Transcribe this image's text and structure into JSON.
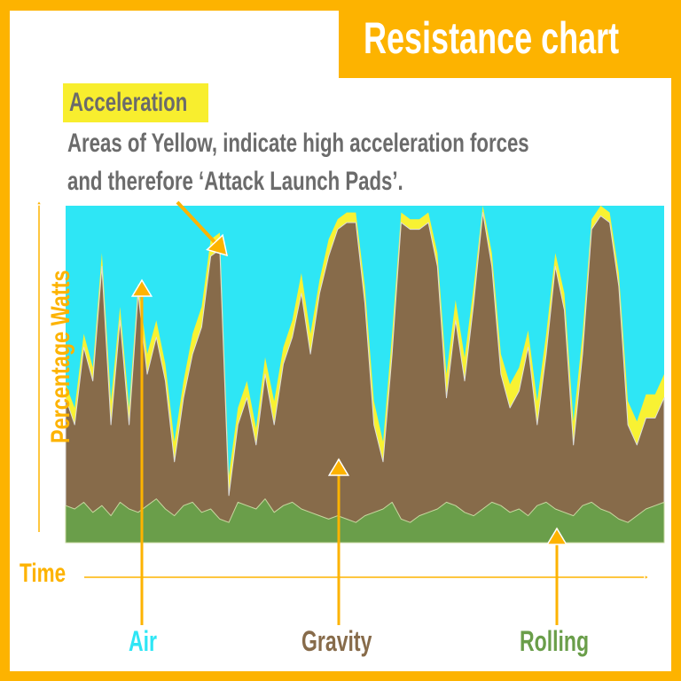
{
  "title": "Resistance chart",
  "acceleration_label": "Acceleration",
  "description": [
    "Areas of Yellow, indicate high acceleration forces",
    "and therefore ‘Attack Launch Pads’."
  ],
  "colors": {
    "frame": "#FDB300",
    "air": "#2EE6F5",
    "gravity": "#876B4A",
    "acceleration": "#F8F233",
    "rolling": "#6A9E4A",
    "text": "#6B6B6B"
  },
  "chart_data": {
    "type": "area",
    "title": "Resistance chart",
    "xlabel": "Time",
    "ylabel": "Percentage Watts",
    "ylim": [
      0,
      100
    ],
    "grid": false,
    "legend": [
      "Air",
      "Gravity",
      "Rolling"
    ],
    "legend_placement": "bottom",
    "annotation": "Acceleration",
    "series": [
      {
        "name": "Gravity",
        "values": [
          43,
          35,
          58,
          48,
          82,
          35,
          66,
          35,
          74,
          50,
          61,
          48,
          24,
          43,
          56,
          64,
          85,
          87,
          14,
          35,
          43,
          29,
          50,
          35,
          53,
          61,
          74,
          56,
          74,
          85,
          93,
          95,
          95,
          71,
          35,
          24,
          56,
          95,
          93,
          93,
          95,
          82,
          43,
          66,
          48,
          71,
          98,
          82,
          50,
          40,
          45,
          58,
          35,
          56,
          82,
          69,
          29,
          56,
          93,
          97,
          95,
          76,
          35,
          29,
          37,
          37,
          43
        ]
      },
      {
        "name": "Acceleration",
        "values": [
          47,
          40,
          62,
          52,
          86,
          42,
          70,
          40,
          77,
          56,
          66,
          53,
          30,
          48,
          62,
          70,
          90,
          92,
          20,
          40,
          48,
          34,
          55,
          42,
          58,
          66,
          80,
          62,
          78,
          90,
          96,
          98,
          98,
          76,
          42,
          30,
          62,
          98,
          96,
          96,
          98,
          86,
          50,
          72,
          55,
          76,
          100,
          86,
          56,
          47,
          52,
          63,
          42,
          62,
          86,
          74,
          36,
          62,
          96,
          100,
          98,
          80,
          42,
          36,
          44,
          44,
          50
        ]
      },
      {
        "name": "Rolling",
        "values": [
          11,
          10,
          12,
          9,
          11,
          8,
          12,
          10,
          9,
          11,
          13,
          10,
          8,
          11,
          12,
          9,
          10,
          7,
          6,
          12,
          11,
          10,
          13,
          9,
          11,
          12,
          10,
          9,
          8,
          7,
          8,
          7,
          6,
          8,
          9,
          10,
          12,
          7,
          6,
          8,
          9,
          10,
          12,
          11,
          9,
          8,
          10,
          12,
          11,
          9,
          10,
          8,
          11,
          12,
          10,
          9,
          8,
          11,
          12,
          10,
          9,
          7,
          6,
          8,
          10,
          11,
          12
        ]
      }
    ]
  }
}
